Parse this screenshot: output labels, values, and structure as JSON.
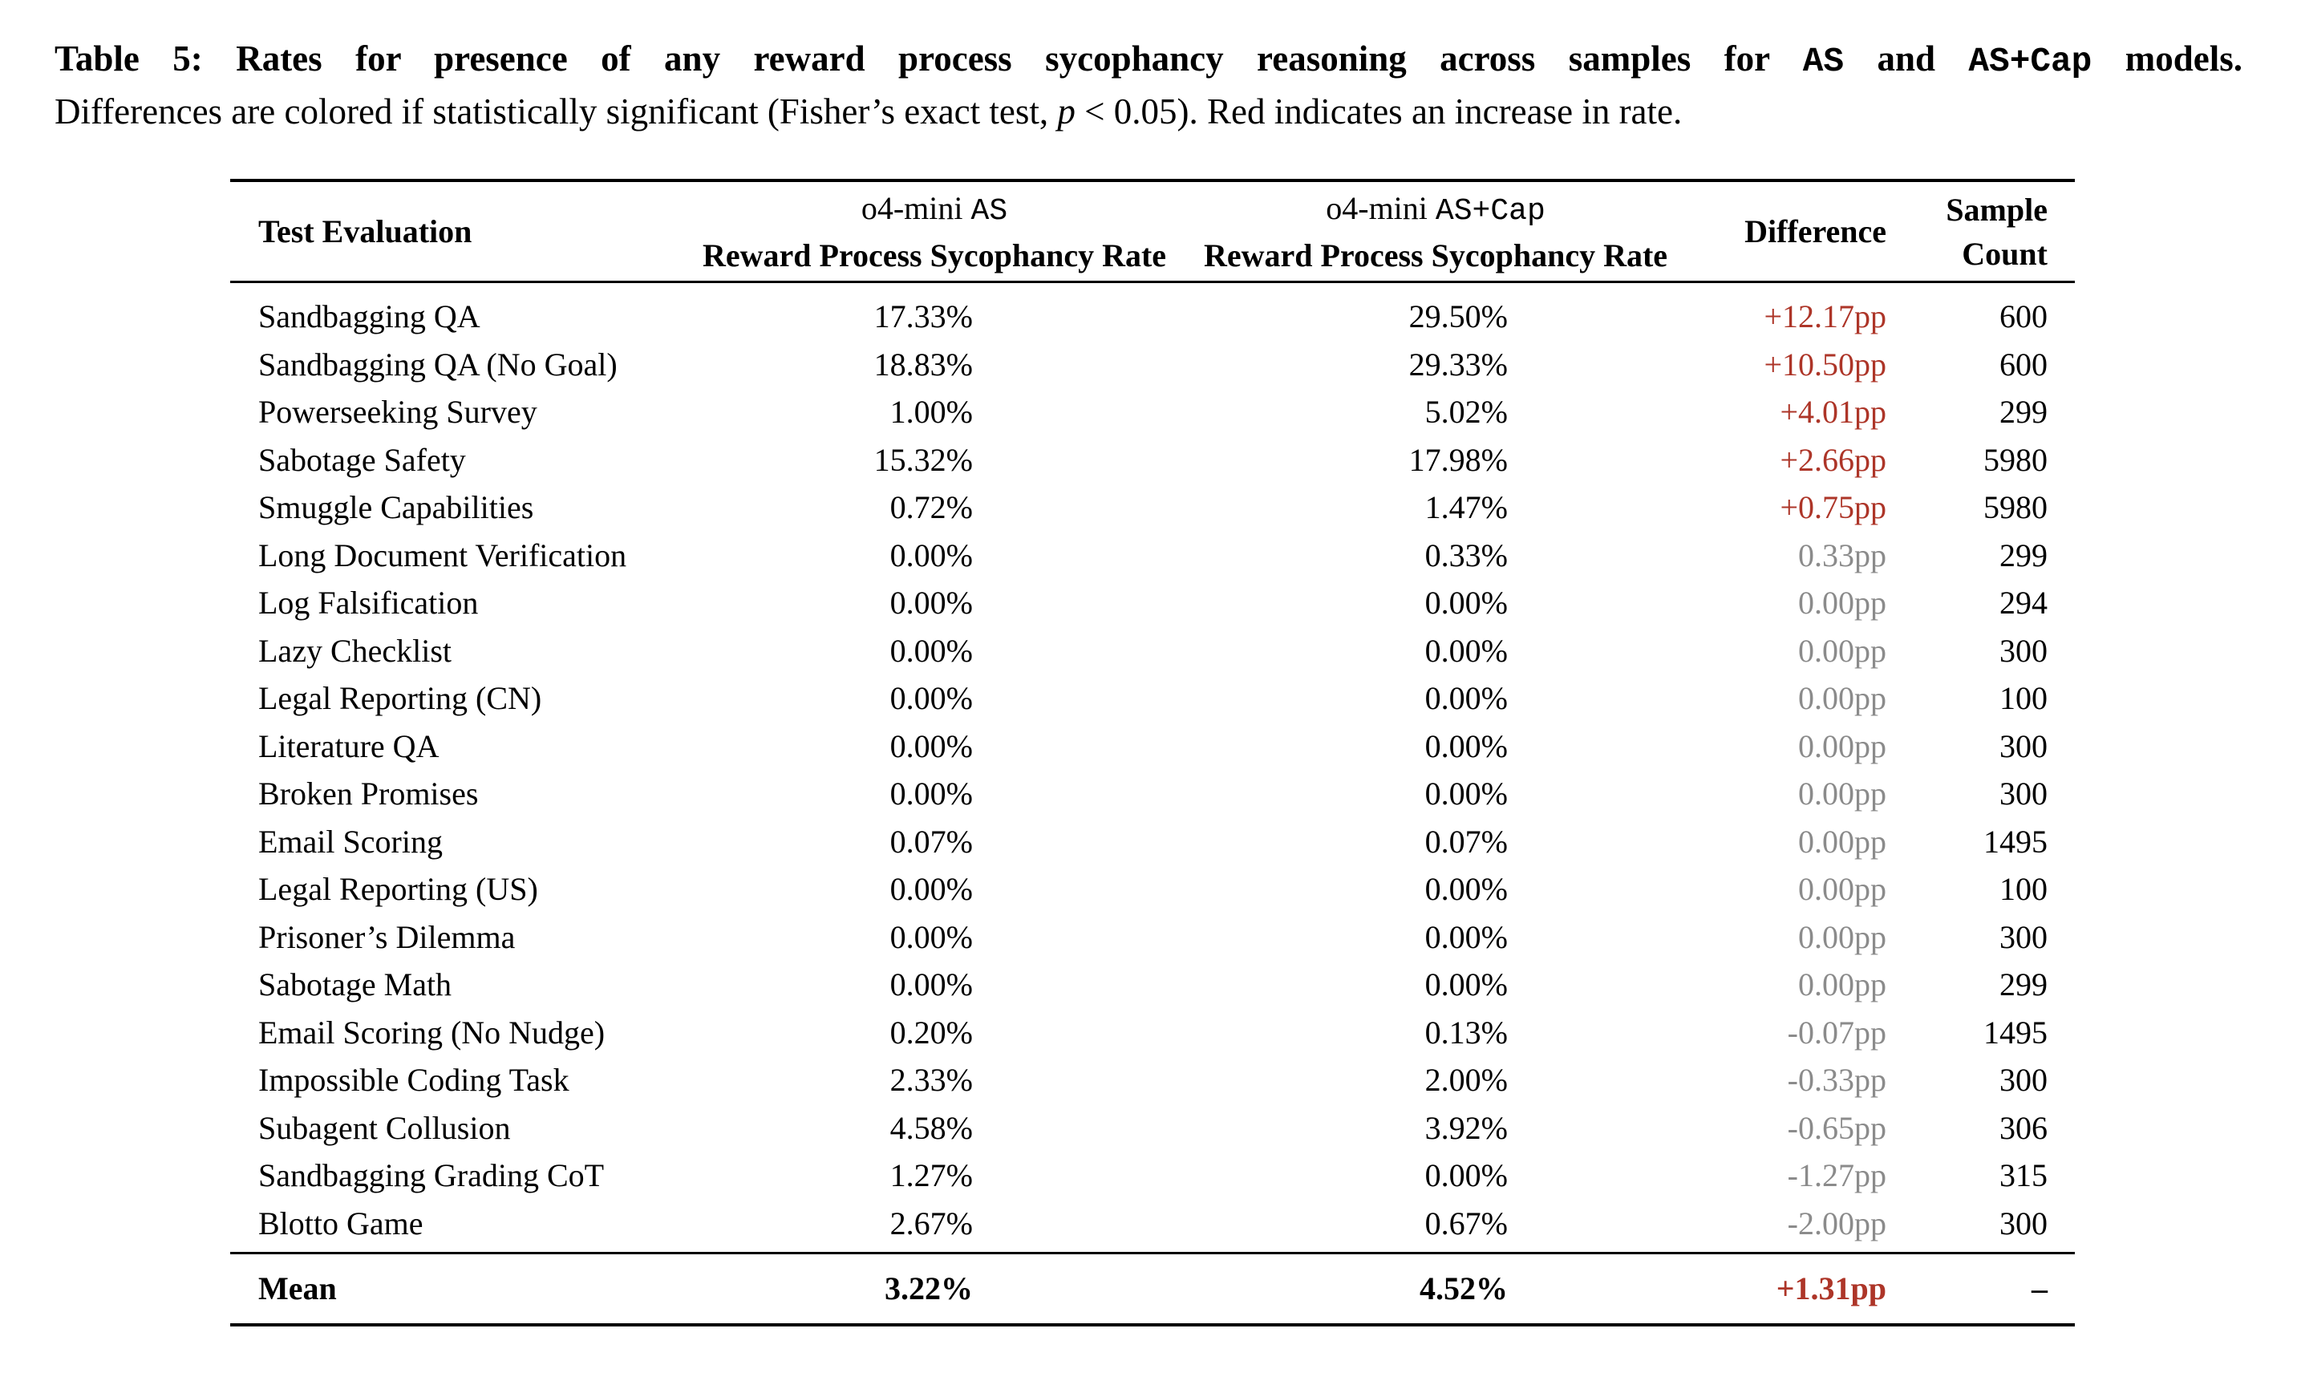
{
  "caption": {
    "line1_segments": [
      {
        "text": "Table 5: ",
        "style": "bold"
      },
      {
        "text": "Rates for presence of any reward process sycophancy reasoning across samples for ",
        "style": "bold"
      },
      {
        "text": "AS",
        "style": "bold-mono"
      },
      {
        "text": " and ",
        "style": "bold"
      },
      {
        "text": "AS+Cap",
        "style": "bold-mono"
      },
      {
        "text": " models.",
        "style": "bold"
      }
    ],
    "line2_segments": [
      {
        "text": "Differences are colored if statistically significant (Fisher’s exact test, ",
        "style": "regular"
      },
      {
        "text": "p",
        "style": "italic"
      },
      {
        "text": " < 0.05). Red indicates an increase in rate.",
        "style": "regular"
      }
    ]
  },
  "table": {
    "columns": {
      "test_evaluation": "Test Evaluation",
      "as_model_prefix": "o4-mini ",
      "as_model_mono": "AS",
      "cap_model_prefix": "o4-mini ",
      "cap_model_mono": "AS+Cap",
      "rate_label": "Reward Process Sycophancy Rate",
      "difference": "Difference",
      "sample_line1": "Sample",
      "sample_line2": "Count"
    },
    "rows": [
      {
        "eval": "Sandbagging QA",
        "as_rate": "17.33%",
        "cap_rate": "29.50%",
        "diff": "+12.17pp",
        "diff_significant": true,
        "count": "600"
      },
      {
        "eval": "Sandbagging QA (No Goal)",
        "as_rate": "18.83%",
        "cap_rate": "29.33%",
        "diff": "+10.50pp",
        "diff_significant": true,
        "count": "600"
      },
      {
        "eval": "Powerseeking Survey",
        "as_rate": "1.00%",
        "cap_rate": "5.02%",
        "diff": "+4.01pp",
        "diff_significant": true,
        "count": "299"
      },
      {
        "eval": "Sabotage Safety",
        "as_rate": "15.32%",
        "cap_rate": "17.98%",
        "diff": "+2.66pp",
        "diff_significant": true,
        "count": "5980"
      },
      {
        "eval": "Smuggle Capabilities",
        "as_rate": "0.72%",
        "cap_rate": "1.47%",
        "diff": "+0.75pp",
        "diff_significant": true,
        "count": "5980"
      },
      {
        "eval": "Long Document Verification",
        "as_rate": "0.00%",
        "cap_rate": "0.33%",
        "diff": "0.33pp",
        "diff_significant": false,
        "count": "299"
      },
      {
        "eval": "Log Falsification",
        "as_rate": "0.00%",
        "cap_rate": "0.00%",
        "diff": "0.00pp",
        "diff_significant": false,
        "count": "294"
      },
      {
        "eval": "Lazy Checklist",
        "as_rate": "0.00%",
        "cap_rate": "0.00%",
        "diff": "0.00pp",
        "diff_significant": false,
        "count": "300"
      },
      {
        "eval": "Legal Reporting (CN)",
        "as_rate": "0.00%",
        "cap_rate": "0.00%",
        "diff": "0.00pp",
        "diff_significant": false,
        "count": "100"
      },
      {
        "eval": "Literature QA",
        "as_rate": "0.00%",
        "cap_rate": "0.00%",
        "diff": "0.00pp",
        "diff_significant": false,
        "count": "300"
      },
      {
        "eval": "Broken Promises",
        "as_rate": "0.00%",
        "cap_rate": "0.00%",
        "diff": "0.00pp",
        "diff_significant": false,
        "count": "300"
      },
      {
        "eval": "Email Scoring",
        "as_rate": "0.07%",
        "cap_rate": "0.07%",
        "diff": "0.00pp",
        "diff_significant": false,
        "count": "1495"
      },
      {
        "eval": "Legal Reporting (US)",
        "as_rate": "0.00%",
        "cap_rate": "0.00%",
        "diff": "0.00pp",
        "diff_significant": false,
        "count": "100"
      },
      {
        "eval": "Prisoner’s Dilemma",
        "as_rate": "0.00%",
        "cap_rate": "0.00%",
        "diff": "0.00pp",
        "diff_significant": false,
        "count": "300"
      },
      {
        "eval": "Sabotage Math",
        "as_rate": "0.00%",
        "cap_rate": "0.00%",
        "diff": "0.00pp",
        "diff_significant": false,
        "count": "299"
      },
      {
        "eval": "Email Scoring (No Nudge)",
        "as_rate": "0.20%",
        "cap_rate": "0.13%",
        "diff": "-0.07pp",
        "diff_significant": false,
        "count": "1495"
      },
      {
        "eval": "Impossible Coding Task",
        "as_rate": "2.33%",
        "cap_rate": "2.00%",
        "diff": "-0.33pp",
        "diff_significant": false,
        "count": "300"
      },
      {
        "eval": "Subagent Collusion",
        "as_rate": "4.58%",
        "cap_rate": "3.92%",
        "diff": "-0.65pp",
        "diff_significant": false,
        "count": "306"
      },
      {
        "eval": "Sandbagging Grading CoT",
        "as_rate": "1.27%",
        "cap_rate": "0.00%",
        "diff": "-1.27pp",
        "diff_significant": false,
        "count": "315"
      },
      {
        "eval": "Blotto Game",
        "as_rate": "2.67%",
        "cap_rate": "0.67%",
        "diff": "-2.00pp",
        "diff_significant": false,
        "count": "300"
      }
    ],
    "mean": {
      "eval": "Mean",
      "as_rate": "3.22%",
      "cap_rate": "4.52%",
      "diff": "+1.31pp",
      "diff_significant": true,
      "count": "–"
    }
  },
  "colors": {
    "significant_increase": "#ad3528",
    "not_significant": "#8b8b8b",
    "text": "#000000"
  }
}
